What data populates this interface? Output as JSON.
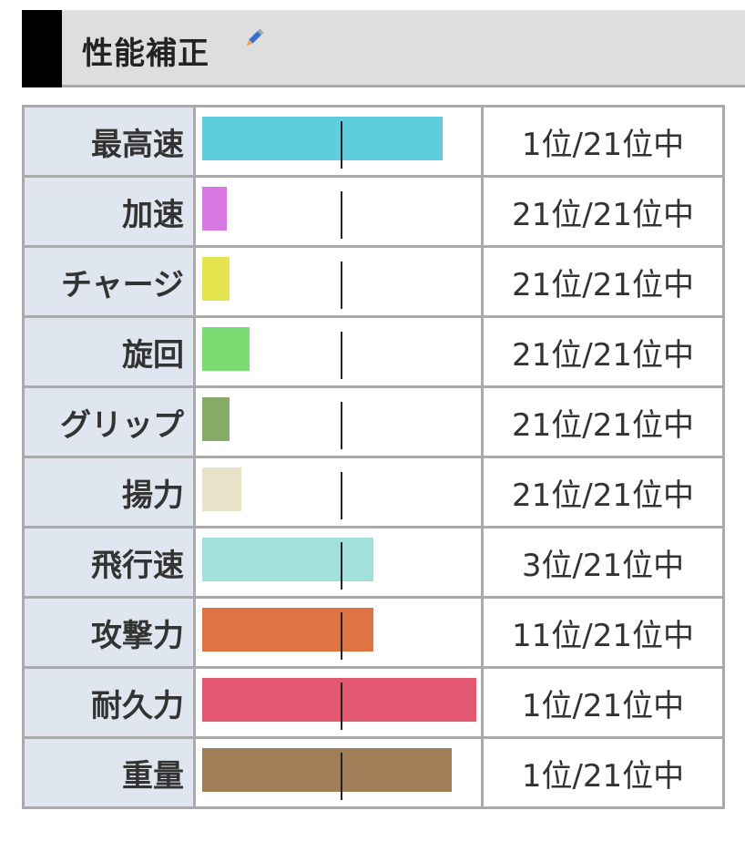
{
  "section": {
    "title": "性能補正",
    "edit_icon": "pencil-icon"
  },
  "rows": [
    {
      "label": "最高速",
      "value": 0.87,
      "color": "#5ecedf",
      "rank": "1位/21位中"
    },
    {
      "label": "加速",
      "value": 0.09,
      "color": "#d878e2",
      "rank": "21位/21位中"
    },
    {
      "label": "チャージ",
      "value": 0.1,
      "color": "#e4e44e",
      "rank": "21位/21位中"
    },
    {
      "label": "旋回",
      "value": 0.17,
      "color": "#7adc72",
      "rank": "21位/21位中"
    },
    {
      "label": "グリップ",
      "value": 0.1,
      "color": "#86ab66",
      "rank": "21位/21位中"
    },
    {
      "label": "揚力",
      "value": 0.14,
      "color": "#e8e2c8",
      "rank": "21位/21位中"
    },
    {
      "label": "飛行速",
      "value": 0.62,
      "color": "#a2e0dc",
      "rank": "3位/21位中"
    },
    {
      "label": "攻撃力",
      "value": 0.62,
      "color": "#de7444",
      "rank": "11位/21位中"
    },
    {
      "label": "耐久力",
      "value": 0.99,
      "color": "#e25870",
      "rank": "1位/21位中"
    },
    {
      "label": "重量",
      "value": 0.9,
      "color": "#a07e58",
      "rank": "1位/21位中"
    }
  ]
}
